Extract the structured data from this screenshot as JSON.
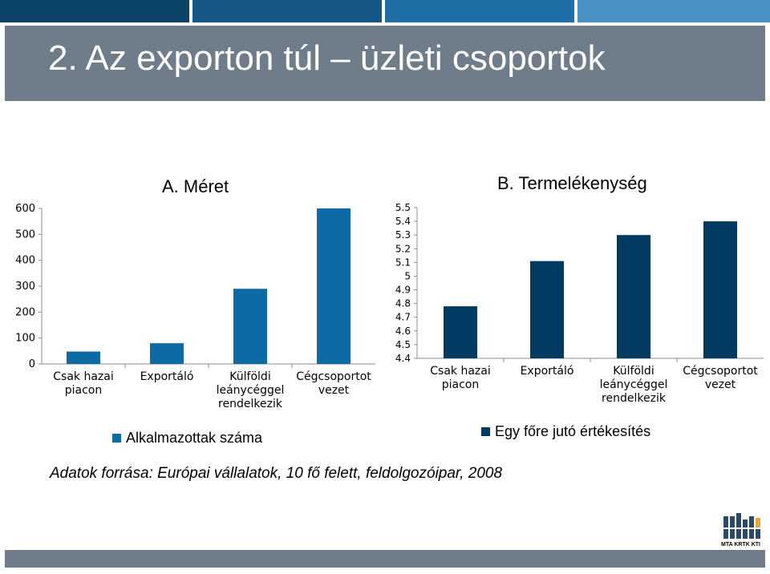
{
  "slide": {
    "title": "2. Az exporton túl – üzleti csoportok",
    "source": "Adatok forrása: Európai vállalatok, 10 fő felett, feldolgozóipar, 2008",
    "logo_text": "MTA KRTK KTI"
  },
  "colors": {
    "bar_a": "#0e6aa3",
    "bar_b": "#023b62",
    "title_band": "#6f7d8a",
    "top_stripes": [
      "#0c4a70",
      "#1b5a86",
      "#2b73a6",
      "#4b91c4"
    ]
  },
  "chart_data": [
    {
      "type": "bar",
      "title": "A. Méret",
      "categories": [
        "Csak hazai piacon",
        "Exportáló",
        "Külföldi leánycéggel rendelkezik",
        "Cégcsoportot vezet"
      ],
      "series": [
        {
          "name": "Alkalmazottak száma",
          "values": [
            48,
            80,
            290,
            600
          ]
        }
      ],
      "ylim": [
        0,
        600
      ],
      "yticks": [
        "0",
        "100",
        "200",
        "300",
        "400",
        "500",
        "600"
      ],
      "grid": false,
      "legend": "bottom"
    },
    {
      "type": "bar",
      "title": "B. Termelékenység",
      "categories": [
        "Csak hazai piacon",
        "Exportáló",
        "Külföldi leánycéggel rendelkezik",
        "Cégcsoportot vezet"
      ],
      "series": [
        {
          "name": "Egy főre jutó értékesítés",
          "values": [
            4.78,
            5.11,
            5.3,
            5.4
          ]
        }
      ],
      "ylim": [
        4.4,
        5.5
      ],
      "yticks": [
        "4.4",
        "4.5",
        "4.6",
        "4.7",
        "4.8",
        "4.9",
        "5",
        "5.1",
        "5.2",
        "5.3",
        "5.4",
        "5.5"
      ],
      "grid": false,
      "legend": "bottom"
    }
  ]
}
